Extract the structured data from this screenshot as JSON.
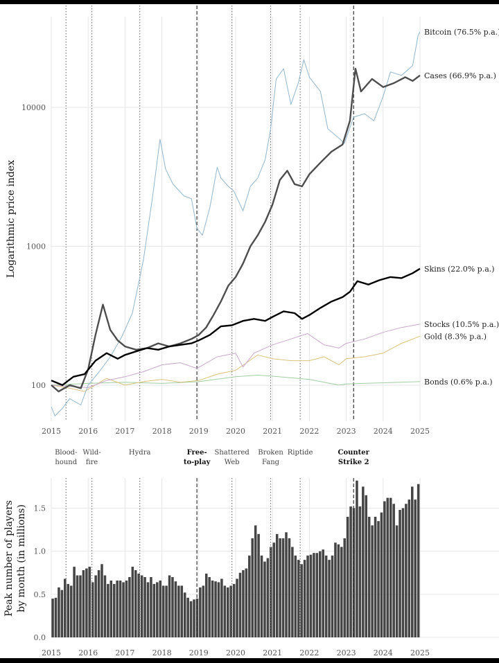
{
  "chart_data": [
    {
      "type": "line",
      "yscale": "log",
      "ylabel": "Logarithmic price index",
      "xlim": [
        2015,
        2025
      ],
      "ylim": [
        55,
        45000
      ],
      "xticks": [
        "2015",
        "2016",
        "2017",
        "2018",
        "2019",
        "2020",
        "2021",
        "2022",
        "2023",
        "2024",
        "2025"
      ],
      "yticks": [
        {
          "value": 100,
          "label": "100"
        },
        {
          "value": 1000,
          "label": "1000"
        },
        {
          "value": 10000,
          "label": "10000"
        }
      ],
      "series": [
        {
          "name": "Bitcoin",
          "label": "Bitcoin (76.5% p.a.)",
          "color": "#8fb6cf",
          "width": 1,
          "points": [
            [
              2015,
              70
            ],
            [
              2015.1,
              60
            ],
            [
              2015.3,
              68
            ],
            [
              2015.5,
              80
            ],
            [
              2015.8,
              72
            ],
            [
              2016,
              100
            ],
            [
              2016.3,
              125
            ],
            [
              2016.6,
              160
            ],
            [
              2016.9,
              220
            ],
            [
              2017.2,
              330
            ],
            [
              2017.5,
              800
            ],
            [
              2017.75,
              2300
            ],
            [
              2017.95,
              5900
            ],
            [
              2018.1,
              3600
            ],
            [
              2018.3,
              2800
            ],
            [
              2018.6,
              2300
            ],
            [
              2018.8,
              2200
            ],
            [
              2018.95,
              1350
            ],
            [
              2019.1,
              1200
            ],
            [
              2019.3,
              1900
            ],
            [
              2019.5,
              3700
            ],
            [
              2019.6,
              3100
            ],
            [
              2019.8,
              2700
            ],
            [
              2019.95,
              2500
            ],
            [
              2020.2,
              1800
            ],
            [
              2020.4,
              2700
            ],
            [
              2020.6,
              3100
            ],
            [
              2020.8,
              4200
            ],
            [
              2020.95,
              7000
            ],
            [
              2021.1,
              16000
            ],
            [
              2021.3,
              19000
            ],
            [
              2021.5,
              10500
            ],
            [
              2021.7,
              15000
            ],
            [
              2021.85,
              22000
            ],
            [
              2022,
              16500
            ],
            [
              2022.3,
              13000
            ],
            [
              2022.5,
              7000
            ],
            [
              2022.8,
              6000
            ],
            [
              2022.95,
              5500
            ],
            [
              2023.2,
              8500
            ],
            [
              2023.5,
              9000
            ],
            [
              2023.75,
              8000
            ],
            [
              2024,
              12000
            ],
            [
              2024.2,
              18000
            ],
            [
              2024.5,
              17000
            ],
            [
              2024.8,
              20000
            ],
            [
              2024.95,
              33000
            ],
            [
              2025,
              35000
            ]
          ]
        },
        {
          "name": "Cases",
          "label": "Cases (66.9% p.a.)",
          "color": "#4d4d4d",
          "width": 2.4,
          "points": [
            [
              2015,
              100
            ],
            [
              2015.2,
              90
            ],
            [
              2015.5,
              100
            ],
            [
              2015.8,
              95
            ],
            [
              2016,
              130
            ],
            [
              2016.2,
              230
            ],
            [
              2016.4,
              380
            ],
            [
              2016.6,
              250
            ],
            [
              2016.8,
              210
            ],
            [
              2017,
              190
            ],
            [
              2017.3,
              180
            ],
            [
              2017.6,
              185
            ],
            [
              2017.9,
              200
            ],
            [
              2018.2,
              190
            ],
            [
              2018.5,
              200
            ],
            [
              2018.8,
              215
            ],
            [
              2019,
              230
            ],
            [
              2019.2,
              260
            ],
            [
              2019.4,
              320
            ],
            [
              2019.6,
              400
            ],
            [
              2019.8,
              520
            ],
            [
              2020,
              600
            ],
            [
              2020.2,
              750
            ],
            [
              2020.4,
              1000
            ],
            [
              2020.6,
              1200
            ],
            [
              2020.8,
              1500
            ],
            [
              2021,
              2000
            ],
            [
              2021.2,
              3000
            ],
            [
              2021.4,
              3500
            ],
            [
              2021.6,
              2800
            ],
            [
              2021.8,
              2700
            ],
            [
              2022,
              3300
            ],
            [
              2022.3,
              4000
            ],
            [
              2022.6,
              4800
            ],
            [
              2022.9,
              5400
            ],
            [
              2023.1,
              8000
            ],
            [
              2023.25,
              19000
            ],
            [
              2023.4,
              13000
            ],
            [
              2023.7,
              16000
            ],
            [
              2024,
              14000
            ],
            [
              2024.3,
              15000
            ],
            [
              2024.6,
              16500
            ],
            [
              2024.8,
              15500
            ],
            [
              2025,
              17000
            ]
          ]
        },
        {
          "name": "Skins",
          "label": "Skins (22.0% p.a.)",
          "color": "#000000",
          "width": 2.4,
          "points": [
            [
              2015,
              108
            ],
            [
              2015.3,
              100
            ],
            [
              2015.6,
              115
            ],
            [
              2015.9,
              120
            ],
            [
              2016.2,
              150
            ],
            [
              2016.5,
              170
            ],
            [
              2016.8,
              155
            ],
            [
              2017,
              165
            ],
            [
              2017.3,
              175
            ],
            [
              2017.6,
              185
            ],
            [
              2017.9,
              180
            ],
            [
              2018.2,
              190
            ],
            [
              2018.5,
              195
            ],
            [
              2018.8,
              200
            ],
            [
              2019,
              210
            ],
            [
              2019.3,
              230
            ],
            [
              2019.6,
              265
            ],
            [
              2019.9,
              270
            ],
            [
              2020.2,
              290
            ],
            [
              2020.5,
              300
            ],
            [
              2020.8,
              290
            ],
            [
              2021,
              310
            ],
            [
              2021.3,
              340
            ],
            [
              2021.6,
              330
            ],
            [
              2021.8,
              300
            ],
            [
              2022,
              320
            ],
            [
              2022.3,
              360
            ],
            [
              2022.6,
              400
            ],
            [
              2022.9,
              430
            ],
            [
              2023.1,
              470
            ],
            [
              2023.3,
              560
            ],
            [
              2023.6,
              530
            ],
            [
              2023.9,
              570
            ],
            [
              2024.2,
              600
            ],
            [
              2024.5,
              590
            ],
            [
              2024.8,
              640
            ],
            [
              2025,
              690
            ]
          ]
        },
        {
          "name": "Stocks",
          "label": "Stocks (10.5% p.a.)",
          "color": "#c9a6cc",
          "width": 1,
          "points": [
            [
              2015,
              100
            ],
            [
              2015.5,
              98
            ],
            [
              2016,
              96
            ],
            [
              2016.5,
              108
            ],
            [
              2017,
              115
            ],
            [
              2017.5,
              125
            ],
            [
              2018,
              140
            ],
            [
              2018.5,
              145
            ],
            [
              2018.95,
              132
            ],
            [
              2019.5,
              160
            ],
            [
              2020,
              170
            ],
            [
              2020.2,
              135
            ],
            [
              2020.5,
              170
            ],
            [
              2021,
              195
            ],
            [
              2021.5,
              215
            ],
            [
              2021.95,
              235
            ],
            [
              2022.4,
              195
            ],
            [
              2022.8,
              185
            ],
            [
              2023,
              200
            ],
            [
              2023.5,
              215
            ],
            [
              2024,
              240
            ],
            [
              2024.5,
              260
            ],
            [
              2025,
              275
            ]
          ]
        },
        {
          "name": "Gold",
          "label": "Gold (8.3% p.a.)",
          "color": "#dcc27a",
          "width": 1,
          "points": [
            [
              2015,
              100
            ],
            [
              2015.5,
              95
            ],
            [
              2015.9,
              90
            ],
            [
              2016.5,
              112
            ],
            [
              2017,
              100
            ],
            [
              2017.5,
              106
            ],
            [
              2018,
              110
            ],
            [
              2018.5,
              105
            ],
            [
              2019,
              108
            ],
            [
              2019.5,
              120
            ],
            [
              2020,
              128
            ],
            [
              2020.6,
              165
            ],
            [
              2021,
              155
            ],
            [
              2021.5,
              150
            ],
            [
              2022,
              150
            ],
            [
              2022.4,
              160
            ],
            [
              2022.8,
              140
            ],
            [
              2023,
              155
            ],
            [
              2023.5,
              160
            ],
            [
              2024,
              170
            ],
            [
              2024.5,
              200
            ],
            [
              2025,
              225
            ]
          ]
        },
        {
          "name": "Bonds",
          "label": "Bonds (0.6% p.a.)",
          "color": "#9fcf9f",
          "width": 1,
          "points": [
            [
              2015,
              100
            ],
            [
              2016,
              103
            ],
            [
              2017,
              105
            ],
            [
              2018,
              103
            ],
            [
              2019,
              106
            ],
            [
              2020,
              115
            ],
            [
              2020.6,
              118
            ],
            [
              2021,
              116
            ],
            [
              2022,
              110
            ],
            [
              2022.8,
              100
            ],
            [
              2023,
              102
            ],
            [
              2024,
              104
            ],
            [
              2025,
              106
            ]
          ]
        }
      ],
      "events": [
        {
          "x": 2015.4,
          "style": "dotted",
          "label": [
            "Blood-",
            "hound"
          ],
          "bold": false
        },
        {
          "x": 2016.1,
          "style": "dotted",
          "label": [
            "Wild-",
            "fire"
          ],
          "bold": false
        },
        {
          "x": 2017.4,
          "style": "dotted",
          "label": [
            "Hydra"
          ],
          "bold": false
        },
        {
          "x": 2018.95,
          "style": "dashed",
          "label": [
            "Free-",
            "to-play"
          ],
          "bold": true
        },
        {
          "x": 2019.9,
          "style": "dotted",
          "label": [
            "Shattered",
            "Web"
          ],
          "bold": false
        },
        {
          "x": 2020.95,
          "style": "dotted",
          "label": [
            "Broken",
            "Fang"
          ],
          "bold": false
        },
        {
          "x": 2021.75,
          "style": "dotted",
          "label": [
            "Riptide"
          ],
          "bold": false
        },
        {
          "x": 2023.2,
          "style": "dashed",
          "label": [
            "Counter",
            "Strike 2"
          ],
          "bold": true
        }
      ]
    },
    {
      "type": "bar",
      "ylabel": [
        "Peak number of players",
        "by month (in millions)"
      ],
      "xlim": [
        2015,
        2025
      ],
      "ylim": [
        0,
        1.85
      ],
      "xticks": [
        "2015",
        "2016",
        "2017",
        "2018",
        "2019",
        "2020",
        "2021",
        "2022",
        "2023",
        "2024",
        "2025"
      ],
      "yticks": [
        {
          "value": 0,
          "label": "0.0"
        },
        {
          "value": 0.5,
          "label": "0.5"
        },
        {
          "value": 1,
          "label": "1.0"
        },
        {
          "value": 1.5,
          "label": "1.5"
        }
      ],
      "color": "#454545",
      "start": [
        2015,
        1
      ],
      "values": [
        0.45,
        0.46,
        0.58,
        0.55,
        0.68,
        0.62,
        0.6,
        0.82,
        0.72,
        0.72,
        0.78,
        0.8,
        0.82,
        0.64,
        0.72,
        0.78,
        0.85,
        0.72,
        0.62,
        0.66,
        0.62,
        0.66,
        0.66,
        0.64,
        0.66,
        0.7,
        0.82,
        0.78,
        0.74,
        0.72,
        0.7,
        0.64,
        0.7,
        0.62,
        0.64,
        0.66,
        0.6,
        0.6,
        0.72,
        0.7,
        0.65,
        0.6,
        0.6,
        0.52,
        0.46,
        0.42,
        0.44,
        0.45,
        0.58,
        0.6,
        0.74,
        0.7,
        0.66,
        0.65,
        0.64,
        0.68,
        0.6,
        0.58,
        0.6,
        0.62,
        0.68,
        0.75,
        0.78,
        0.8,
        0.95,
        1.15,
        1.3,
        1.2,
        0.95,
        0.88,
        0.92,
        1.05,
        1.1,
        1.2,
        1.15,
        1.15,
        1.22,
        1.15,
        1.05,
        0.95,
        0.9,
        0.85,
        0.9,
        0.95,
        0.96,
        0.98,
        0.98,
        1.0,
        1.02,
        0.95,
        0.9,
        0.95,
        1.1,
        1.08,
        1.05,
        1.15,
        1.4,
        1.52,
        1.5,
        1.82,
        1.52,
        1.75,
        1.65,
        1.4,
        1.3,
        1.4,
        1.35,
        1.45,
        1.58,
        1.62,
        1.62,
        1.55,
        1.3,
        1.48,
        1.5,
        1.55,
        1.6,
        1.75,
        1.6,
        1.78
      ]
    }
  ]
}
